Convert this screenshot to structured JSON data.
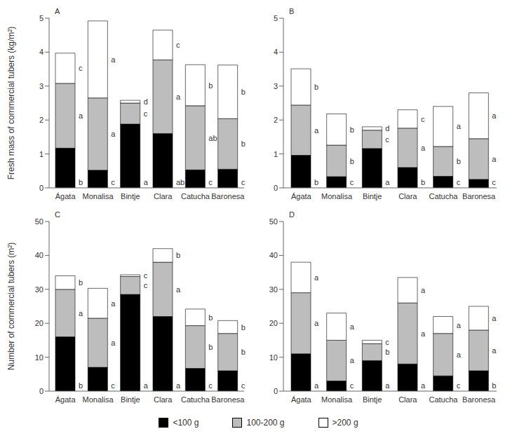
{
  "chart_data": [
    {
      "type": "bar",
      "title": "A",
      "stacked": true,
      "y_label": "Fresh mass of commercial tubers (kg/m²)",
      "categories": [
        "Ágata",
        "Monalisa",
        "Bintje",
        "Clara",
        "Catucha",
        "Baronesa"
      ],
      "ylim": [
        0,
        5
      ],
      "yticks": [
        0,
        1,
        2,
        3,
        4,
        5
      ],
      "series": [
        {
          "name": "<100 g",
          "color": "#000000",
          "values": [
            1.17,
            0.52,
            1.88,
            1.6,
            0.53,
            0.55
          ],
          "letters": [
            "b",
            "c",
            "a",
            "ab",
            "c",
            "c"
          ]
        },
        {
          "name": "100-200 g",
          "color": "#bdbdbd",
          "values": [
            1.91,
            2.13,
            0.62,
            2.17,
            1.89,
            1.49
          ],
          "letters": [
            "a",
            "a",
            "c",
            "a",
            "ab",
            "b"
          ]
        },
        {
          "name": ">200 g",
          "color": "#ffffff",
          "values": [
            0.89,
            2.27,
            0.08,
            0.88,
            1.21,
            1.58
          ],
          "letters": [
            "c",
            "a",
            "d",
            "c",
            "b",
            "b"
          ]
        }
      ]
    },
    {
      "type": "bar",
      "title": "B",
      "stacked": true,
      "categories": [
        "Ágata",
        "Monalisa",
        "Bintje",
        "Clara",
        "Catucha",
        "Baronesa"
      ],
      "ylim": [
        0,
        5
      ],
      "yticks": [
        0,
        1,
        2,
        3,
        4,
        5
      ],
      "series": [
        {
          "name": "<100 g",
          "color": "#000000",
          "values": [
            0.96,
            0.33,
            1.16,
            0.6,
            0.34,
            0.25
          ],
          "letters": [
            "b",
            "c",
            "a",
            "b",
            "c",
            "c"
          ]
        },
        {
          "name": "100-200 g",
          "color": "#bdbdbd",
          "values": [
            1.48,
            0.93,
            0.54,
            1.16,
            0.88,
            1.2
          ],
          "letters": [
            "a",
            "b",
            "c",
            "a",
            "b",
            "a"
          ]
        },
        {
          "name": ">200 g",
          "color": "#ffffff",
          "values": [
            1.07,
            0.92,
            0.1,
            0.54,
            1.18,
            1.35
          ],
          "letters": [
            "b",
            "b",
            "d",
            "c",
            "a",
            "a"
          ]
        }
      ]
    },
    {
      "type": "bar",
      "title": "C",
      "stacked": true,
      "y_label": "Number of commercial tubers (m²)",
      "categories": [
        "Ágata",
        "Monalisa",
        "Bintje",
        "Clara",
        "Catucha",
        "Baronesa"
      ],
      "ylim": [
        0,
        50
      ],
      "yticks": [
        0,
        10,
        20,
        30,
        40,
        50
      ],
      "series": [
        {
          "name": "<100 g",
          "color": "#000000",
          "values": [
            16,
            7,
            28.5,
            22,
            6.7,
            6
          ],
          "letters": [
            "b",
            "c",
            "a",
            "a",
            "c",
            "c"
          ]
        },
        {
          "name": "100-200 g",
          "color": "#bdbdbd",
          "values": [
            14,
            14.5,
            5.3,
            16,
            12.6,
            11
          ],
          "letters": [
            "a",
            "a",
            "c",
            "a",
            "b",
            "b"
          ]
        },
        {
          "name": ">200 g",
          "color": "#ffffff",
          "values": [
            4,
            8.8,
            0.5,
            4,
            4.9,
            3.8
          ],
          "letters": [
            "b",
            "a",
            "c",
            "b",
            "b",
            "b"
          ]
        }
      ]
    },
    {
      "type": "bar",
      "title": "D",
      "stacked": true,
      "categories": [
        "Ágata",
        "Monalisa",
        "Bintje",
        "Clara",
        "Catucha",
        "Baronesa"
      ],
      "ylim": [
        0,
        50
      ],
      "yticks": [
        0,
        10,
        20,
        30,
        40,
        50
      ],
      "series": [
        {
          "name": "<100 g",
          "color": "#000000",
          "values": [
            11,
            3,
            9,
            8,
            4.5,
            6
          ],
          "letters": [
            "a",
            "c",
            "a",
            "a",
            "c",
            "b"
          ]
        },
        {
          "name": "100-200 g",
          "color": "#bdbdbd",
          "values": [
            18,
            12,
            5,
            18,
            12.5,
            12
          ],
          "letters": [
            "a",
            "a",
            "b",
            "a",
            "a",
            "a"
          ]
        },
        {
          "name": ">200 g",
          "color": "#ffffff",
          "values": [
            9,
            8,
            1,
            7.5,
            5,
            7
          ],
          "letters": [
            "a",
            "a",
            "c",
            "a",
            "a",
            "a"
          ]
        }
      ]
    }
  ]
}
